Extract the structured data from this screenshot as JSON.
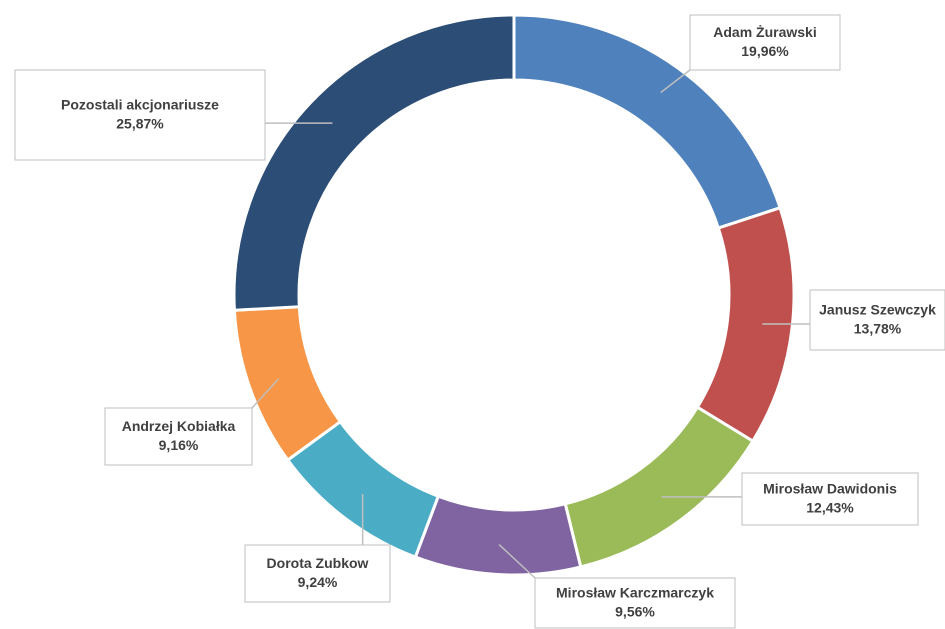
{
  "chart_data": {
    "type": "donut",
    "categories": [
      "Adam Żurawski",
      "Janusz Szewczyk",
      "Mirosław Dawidonis",
      "Mirosław Karczmarczyk",
      "Dorota Zubkow",
      "Andrzej Kobiałka",
      "Pozostali akcjonariusze"
    ],
    "values": [
      19.96,
      13.78,
      12.43,
      9.56,
      9.24,
      9.16,
      25.87
    ],
    "value_labels": [
      "19,96%",
      "13,78%",
      "12,43%",
      "9,56%",
      "9,24%",
      "9,16%",
      "25,87%"
    ],
    "colors": [
      "#4f81bd",
      "#c0504d",
      "#9bbb59",
      "#8064a2",
      "#4bacc6",
      "#f79646",
      "#2c4d75"
    ]
  }
}
